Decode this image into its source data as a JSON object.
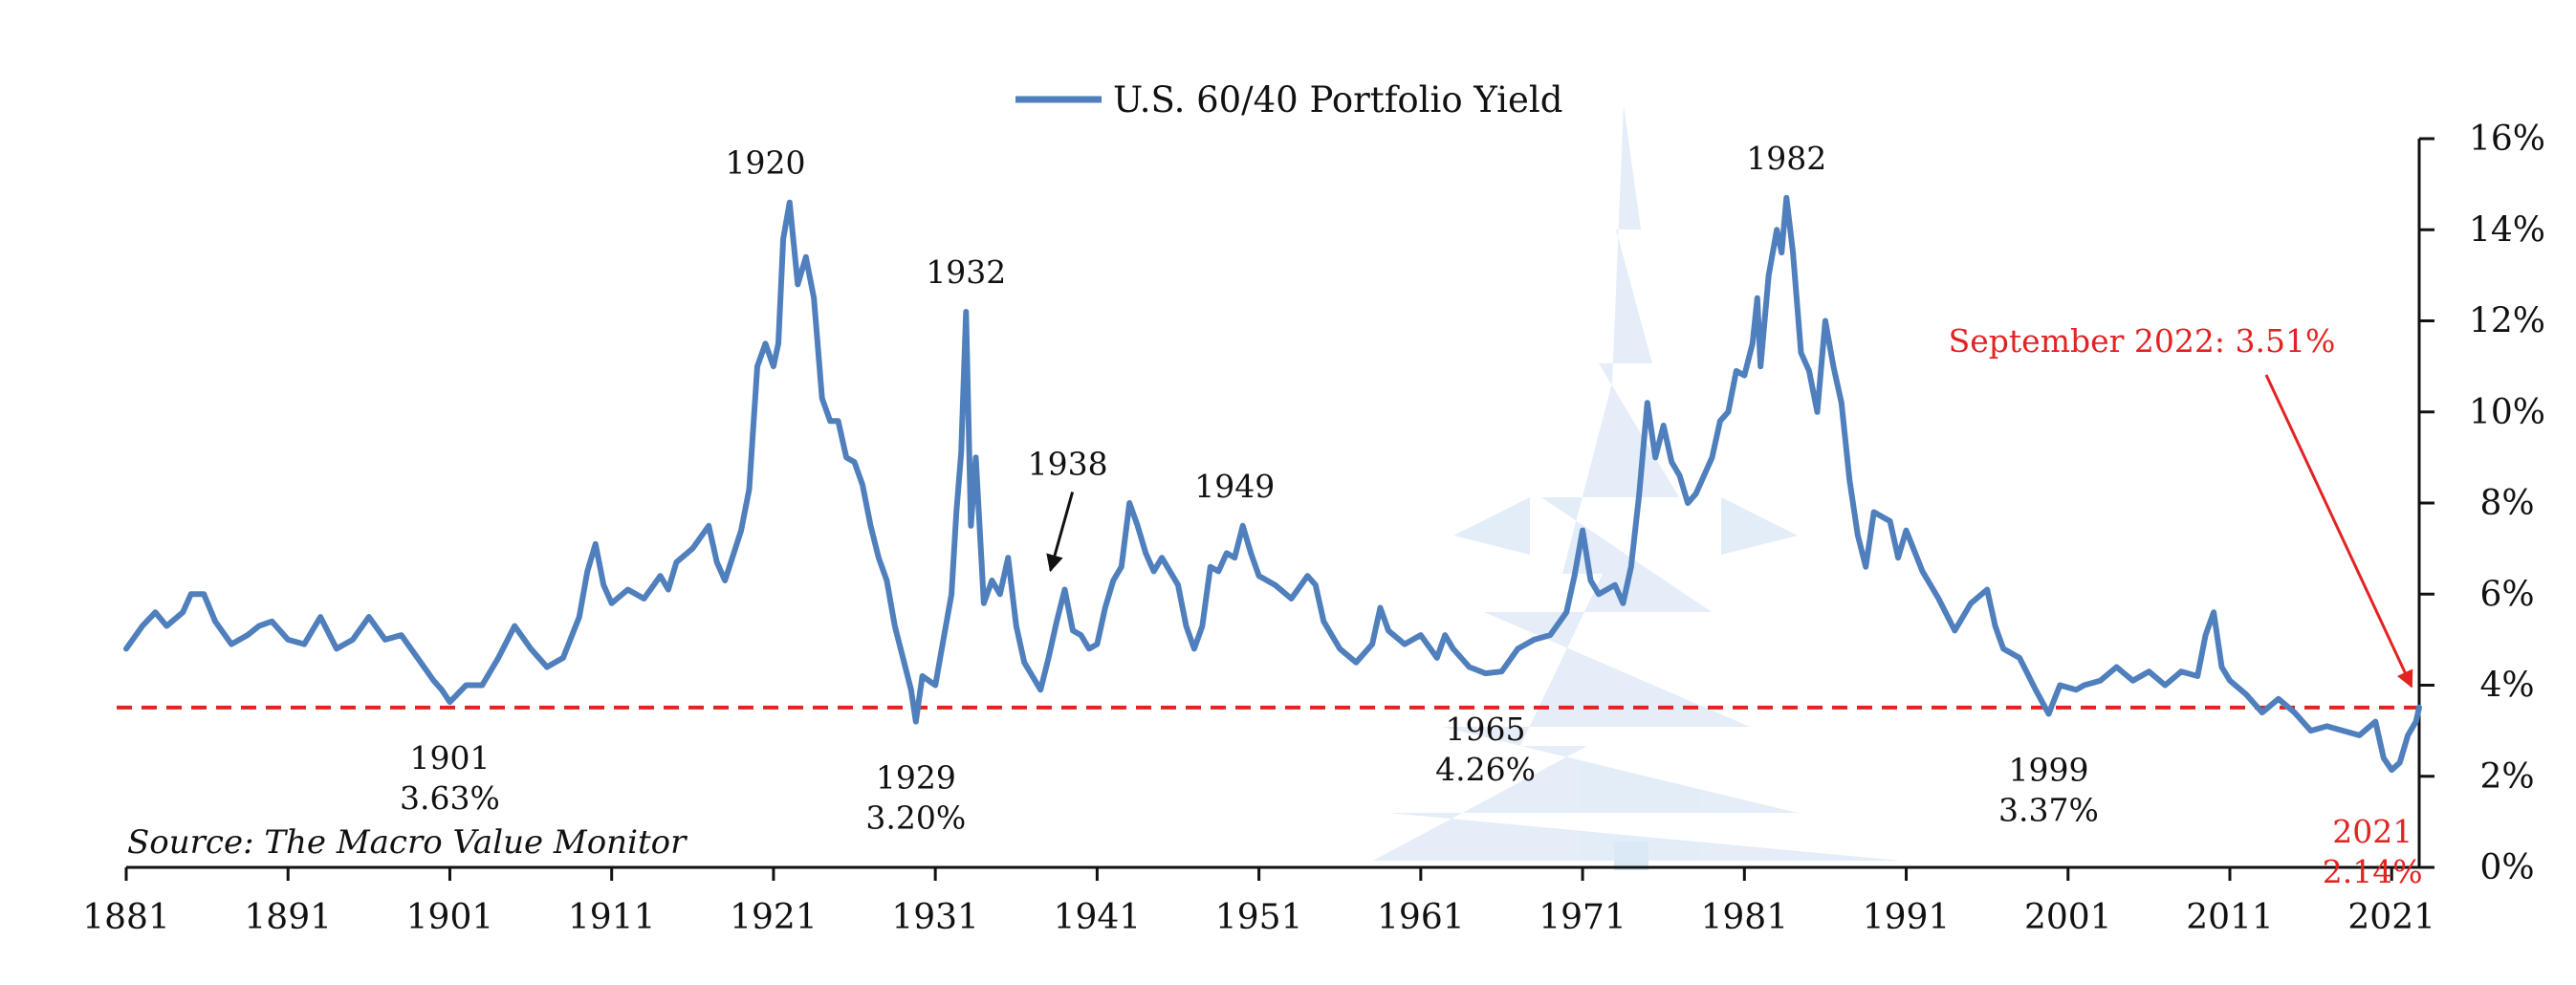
{
  "chart_data": {
    "type": "line",
    "legend": "U.S. 60/40 Portfolio Yield",
    "source": "Source: The Macro Value Monitor",
    "xlim": [
      1881,
      2022.7
    ],
    "ylim": [
      0,
      16
    ],
    "x_ticks": [
      {
        "value": 1881,
        "label": "1881"
      },
      {
        "value": 1891,
        "label": "1891"
      },
      {
        "value": 1901,
        "label": "1901"
      },
      {
        "value": 1911,
        "label": "1911"
      },
      {
        "value": 1921,
        "label": "1921"
      },
      {
        "value": 1931,
        "label": "1931"
      },
      {
        "value": 1941,
        "label": "1941"
      },
      {
        "value": 1951,
        "label": "1951"
      },
      {
        "value": 1961,
        "label": "1961"
      },
      {
        "value": 1971,
        "label": "1971"
      },
      {
        "value": 1981,
        "label": "1981"
      },
      {
        "value": 1991,
        "label": "1991"
      },
      {
        "value": 2001,
        "label": "2001"
      },
      {
        "value": 2011,
        "label": "2011"
      },
      {
        "value": 2021,
        "label": "2021"
      }
    ],
    "y_ticks": [
      {
        "value": 0,
        "label": "0%"
      },
      {
        "value": 2,
        "label": "2%"
      },
      {
        "value": 4,
        "label": "4%"
      },
      {
        "value": 6,
        "label": "6%"
      },
      {
        "value": 8,
        "label": "8%"
      },
      {
        "value": 10,
        "label": "10%"
      },
      {
        "value": 12,
        "label": "12%"
      },
      {
        "value": 14,
        "label": "14%"
      },
      {
        "value": 16,
        "label": "16%"
      }
    ],
    "reference_line": {
      "value": 3.51,
      "color": "#e32222"
    },
    "series": [
      {
        "name": "U.S. 60/40 Portfolio Yield",
        "color": "#4f7fbc",
        "points": [
          [
            1881.0,
            4.8
          ],
          [
            1882.0,
            5.3
          ],
          [
            1882.8,
            5.6
          ],
          [
            1883.5,
            5.3
          ],
          [
            1884.5,
            5.6
          ],
          [
            1885.0,
            6.0
          ],
          [
            1885.8,
            6.0
          ],
          [
            1886.5,
            5.4
          ],
          [
            1887.5,
            4.9
          ],
          [
            1888.5,
            5.1
          ],
          [
            1889.2,
            5.3
          ],
          [
            1890.0,
            5.4
          ],
          [
            1891.0,
            5.0
          ],
          [
            1892.0,
            4.9
          ],
          [
            1893.0,
            5.5
          ],
          [
            1894.0,
            4.8
          ],
          [
            1895.0,
            5.0
          ],
          [
            1896.0,
            5.5
          ],
          [
            1897.0,
            5.0
          ],
          [
            1898.0,
            5.1
          ],
          [
            1899.0,
            4.6
          ],
          [
            1900.0,
            4.1
          ],
          [
            1900.5,
            3.9
          ],
          [
            1901.0,
            3.63
          ],
          [
            1902.0,
            4.0
          ],
          [
            1903.0,
            4.0
          ],
          [
            1904.0,
            4.6
          ],
          [
            1905.0,
            5.3
          ],
          [
            1906.0,
            4.8
          ],
          [
            1907.0,
            4.4
          ],
          [
            1908.0,
            4.6
          ],
          [
            1909.0,
            5.5
          ],
          [
            1909.5,
            6.5
          ],
          [
            1910.0,
            7.1
          ],
          [
            1910.5,
            6.2
          ],
          [
            1911.0,
            5.8
          ],
          [
            1912.0,
            6.1
          ],
          [
            1913.0,
            5.9
          ],
          [
            1914.0,
            6.4
          ],
          [
            1914.5,
            6.1
          ],
          [
            1915.0,
            6.7
          ],
          [
            1916.0,
            7.0
          ],
          [
            1917.0,
            7.5
          ],
          [
            1917.5,
            6.7
          ],
          [
            1918.0,
            6.3
          ],
          [
            1919.0,
            7.4
          ],
          [
            1919.5,
            8.3
          ],
          [
            1920.0,
            11.0
          ],
          [
            1920.5,
            11.5
          ],
          [
            1921.0,
            11.0
          ],
          [
            1921.3,
            11.5
          ],
          [
            1921.6,
            13.8
          ],
          [
            1922.0,
            14.6
          ],
          [
            1922.5,
            12.8
          ],
          [
            1923.0,
            13.4
          ],
          [
            1923.5,
            12.5
          ],
          [
            1924.0,
            10.3
          ],
          [
            1924.5,
            9.8
          ],
          [
            1925.0,
            9.8
          ],
          [
            1925.5,
            9.0
          ],
          [
            1926.0,
            8.9
          ],
          [
            1926.5,
            8.4
          ],
          [
            1927.0,
            7.5
          ],
          [
            1927.5,
            6.8
          ],
          [
            1928.0,
            6.3
          ],
          [
            1928.5,
            5.3
          ],
          [
            1929.0,
            4.6
          ],
          [
            1929.5,
            3.9
          ],
          [
            1929.8,
            3.2
          ],
          [
            1930.2,
            4.2
          ],
          [
            1931.0,
            4.0
          ],
          [
            1931.5,
            5.0
          ],
          [
            1932.0,
            6.0
          ],
          [
            1932.3,
            7.8
          ],
          [
            1932.6,
            9.1
          ],
          [
            1932.9,
            12.2
          ],
          [
            1933.2,
            7.5
          ],
          [
            1933.5,
            9.0
          ],
          [
            1934.0,
            5.8
          ],
          [
            1934.5,
            6.3
          ],
          [
            1935.0,
            6.0
          ],
          [
            1935.5,
            6.8
          ],
          [
            1936.0,
            5.3
          ],
          [
            1936.5,
            4.5
          ],
          [
            1937.0,
            4.2
          ],
          [
            1937.5,
            3.9
          ],
          [
            1938.0,
            4.6
          ],
          [
            1938.5,
            5.4
          ],
          [
            1939.0,
            6.1
          ],
          [
            1939.5,
            5.2
          ],
          [
            1940.0,
            5.1
          ],
          [
            1940.5,
            4.8
          ],
          [
            1941.0,
            4.9
          ],
          [
            1941.5,
            5.7
          ],
          [
            1942.0,
            6.3
          ],
          [
            1942.5,
            6.6
          ],
          [
            1943.0,
            8.0
          ],
          [
            1943.5,
            7.5
          ],
          [
            1944.0,
            6.9
          ],
          [
            1944.5,
            6.5
          ],
          [
            1945.0,
            6.8
          ],
          [
            1946.0,
            6.2
          ],
          [
            1946.5,
            5.3
          ],
          [
            1947.0,
            4.8
          ],
          [
            1947.5,
            5.3
          ],
          [
            1948.0,
            6.6
          ],
          [
            1948.5,
            6.5
          ],
          [
            1949.0,
            6.9
          ],
          [
            1949.5,
            6.8
          ],
          [
            1950.0,
            7.5
          ],
          [
            1950.5,
            6.9
          ],
          [
            1951.0,
            6.4
          ],
          [
            1952.0,
            6.2
          ],
          [
            1953.0,
            5.9
          ],
          [
            1954.0,
            6.4
          ],
          [
            1954.5,
            6.2
          ],
          [
            1955.0,
            5.4
          ],
          [
            1956.0,
            4.8
          ],
          [
            1957.0,
            4.5
          ],
          [
            1958.0,
            4.9
          ],
          [
            1958.5,
            5.7
          ],
          [
            1959.0,
            5.2
          ],
          [
            1960.0,
            4.9
          ],
          [
            1961.0,
            5.1
          ],
          [
            1962.0,
            4.6
          ],
          [
            1962.5,
            5.1
          ],
          [
            1963.0,
            4.8
          ],
          [
            1964.0,
            4.4
          ],
          [
            1965.0,
            4.26
          ],
          [
            1966.0,
            4.3
          ],
          [
            1967.0,
            4.8
          ],
          [
            1968.0,
            5.0
          ],
          [
            1969.0,
            5.1
          ],
          [
            1970.0,
            5.6
          ],
          [
            1970.5,
            6.4
          ],
          [
            1971.0,
            7.4
          ],
          [
            1971.5,
            6.3
          ],
          [
            1972.0,
            6.0
          ],
          [
            1973.0,
            6.2
          ],
          [
            1973.5,
            5.8
          ],
          [
            1974.0,
            6.6
          ],
          [
            1974.5,
            8.2
          ],
          [
            1975.0,
            10.2
          ],
          [
            1975.5,
            9.0
          ],
          [
            1976.0,
            9.7
          ],
          [
            1976.5,
            8.9
          ],
          [
            1977.0,
            8.6
          ],
          [
            1977.5,
            8.0
          ],
          [
            1978.0,
            8.2
          ],
          [
            1979.0,
            9.0
          ],
          [
            1979.5,
            9.8
          ],
          [
            1980.0,
            10.0
          ],
          [
            1980.5,
            10.9
          ],
          [
            1981.0,
            10.8
          ],
          [
            1981.5,
            11.5
          ],
          [
            1981.8,
            12.5
          ],
          [
            1982.0,
            11.0
          ],
          [
            1982.5,
            13.0
          ],
          [
            1983.0,
            14.0
          ],
          [
            1983.3,
            13.5
          ],
          [
            1983.6,
            14.7
          ],
          [
            1984.0,
            13.5
          ],
          [
            1984.5,
            11.3
          ],
          [
            1985.0,
            10.9
          ],
          [
            1985.5,
            10.0
          ],
          [
            1986.0,
            12.0
          ],
          [
            1986.5,
            11.0
          ],
          [
            1987.0,
            10.2
          ],
          [
            1987.5,
            8.5
          ],
          [
            1988.0,
            7.3
          ],
          [
            1988.5,
            6.6
          ],
          [
            1989.0,
            7.8
          ],
          [
            1990.0,
            7.6
          ],
          [
            1990.5,
            6.8
          ],
          [
            1991.0,
            7.4
          ],
          [
            1992.0,
            6.5
          ],
          [
            1993.0,
            5.9
          ],
          [
            1994.0,
            5.2
          ],
          [
            1995.0,
            5.8
          ],
          [
            1996.0,
            6.1
          ],
          [
            1996.5,
            5.3
          ],
          [
            1997.0,
            4.8
          ],
          [
            1998.0,
            4.6
          ],
          [
            1999.0,
            3.9
          ],
          [
            1999.8,
            3.37
          ],
          [
            2000.5,
            4.0
          ],
          [
            2001.5,
            3.9
          ],
          [
            2002.0,
            4.0
          ],
          [
            2003.0,
            4.1
          ],
          [
            2004.0,
            4.4
          ],
          [
            2005.0,
            4.1
          ],
          [
            2006.0,
            4.3
          ],
          [
            2007.0,
            4.0
          ],
          [
            2008.0,
            4.3
          ],
          [
            2009.0,
            4.2
          ],
          [
            2009.5,
            5.1
          ],
          [
            2010.0,
            5.6
          ],
          [
            2010.5,
            4.4
          ],
          [
            2011.0,
            4.1
          ],
          [
            2012.0,
            3.8
          ],
          [
            2013.0,
            3.4
          ],
          [
            2014.0,
            3.7
          ],
          [
            2015.0,
            3.4
          ],
          [
            2016.0,
            3.0
          ],
          [
            2017.0,
            3.1
          ],
          [
            2018.0,
            3.0
          ],
          [
            2019.0,
            2.9
          ],
          [
            2020.0,
            3.2
          ],
          [
            2020.5,
            2.4
          ],
          [
            2021.0,
            2.14
          ],
          [
            2021.5,
            2.3
          ],
          [
            2022.0,
            2.9
          ],
          [
            2022.5,
            3.2
          ],
          [
            2022.7,
            3.51
          ]
        ]
      }
    ],
    "annotations": [
      {
        "label": "1920",
        "x": 1920.5,
        "y": 14.6,
        "placement": "above"
      },
      {
        "label": "1932",
        "x": 1932.9,
        "y": 12.2,
        "placement": "above"
      },
      {
        "label": "1938",
        "x": 1938.0,
        "y": 6.1,
        "placement": "above-arrow"
      },
      {
        "label": "1949",
        "x": 1949.5,
        "y": 7.5,
        "placement": "above"
      },
      {
        "label": "1982",
        "x": 1983.6,
        "y": 14.7,
        "placement": "above"
      },
      {
        "label": "1901",
        "value": "3.63%",
        "x": 1901.0,
        "y": 3.63,
        "placement": "below"
      },
      {
        "label": "1929",
        "value": "3.20%",
        "x": 1929.8,
        "y": 3.2,
        "placement": "below"
      },
      {
        "label": "1965",
        "value": "4.26%",
        "x": 1965.0,
        "y": 4.26,
        "placement": "below"
      },
      {
        "label": "1999",
        "value": "3.37%",
        "x": 1999.8,
        "y": 3.37,
        "placement": "below"
      },
      {
        "label": "2021",
        "value": "2.14%",
        "x": 2021.0,
        "y": 2.14,
        "placement": "below",
        "color": "#e32222"
      },
      {
        "label": "September 2022: 3.51%",
        "x": 2022.7,
        "y": 3.51,
        "placement": "callout",
        "color": "#e32222"
      }
    ]
  }
}
